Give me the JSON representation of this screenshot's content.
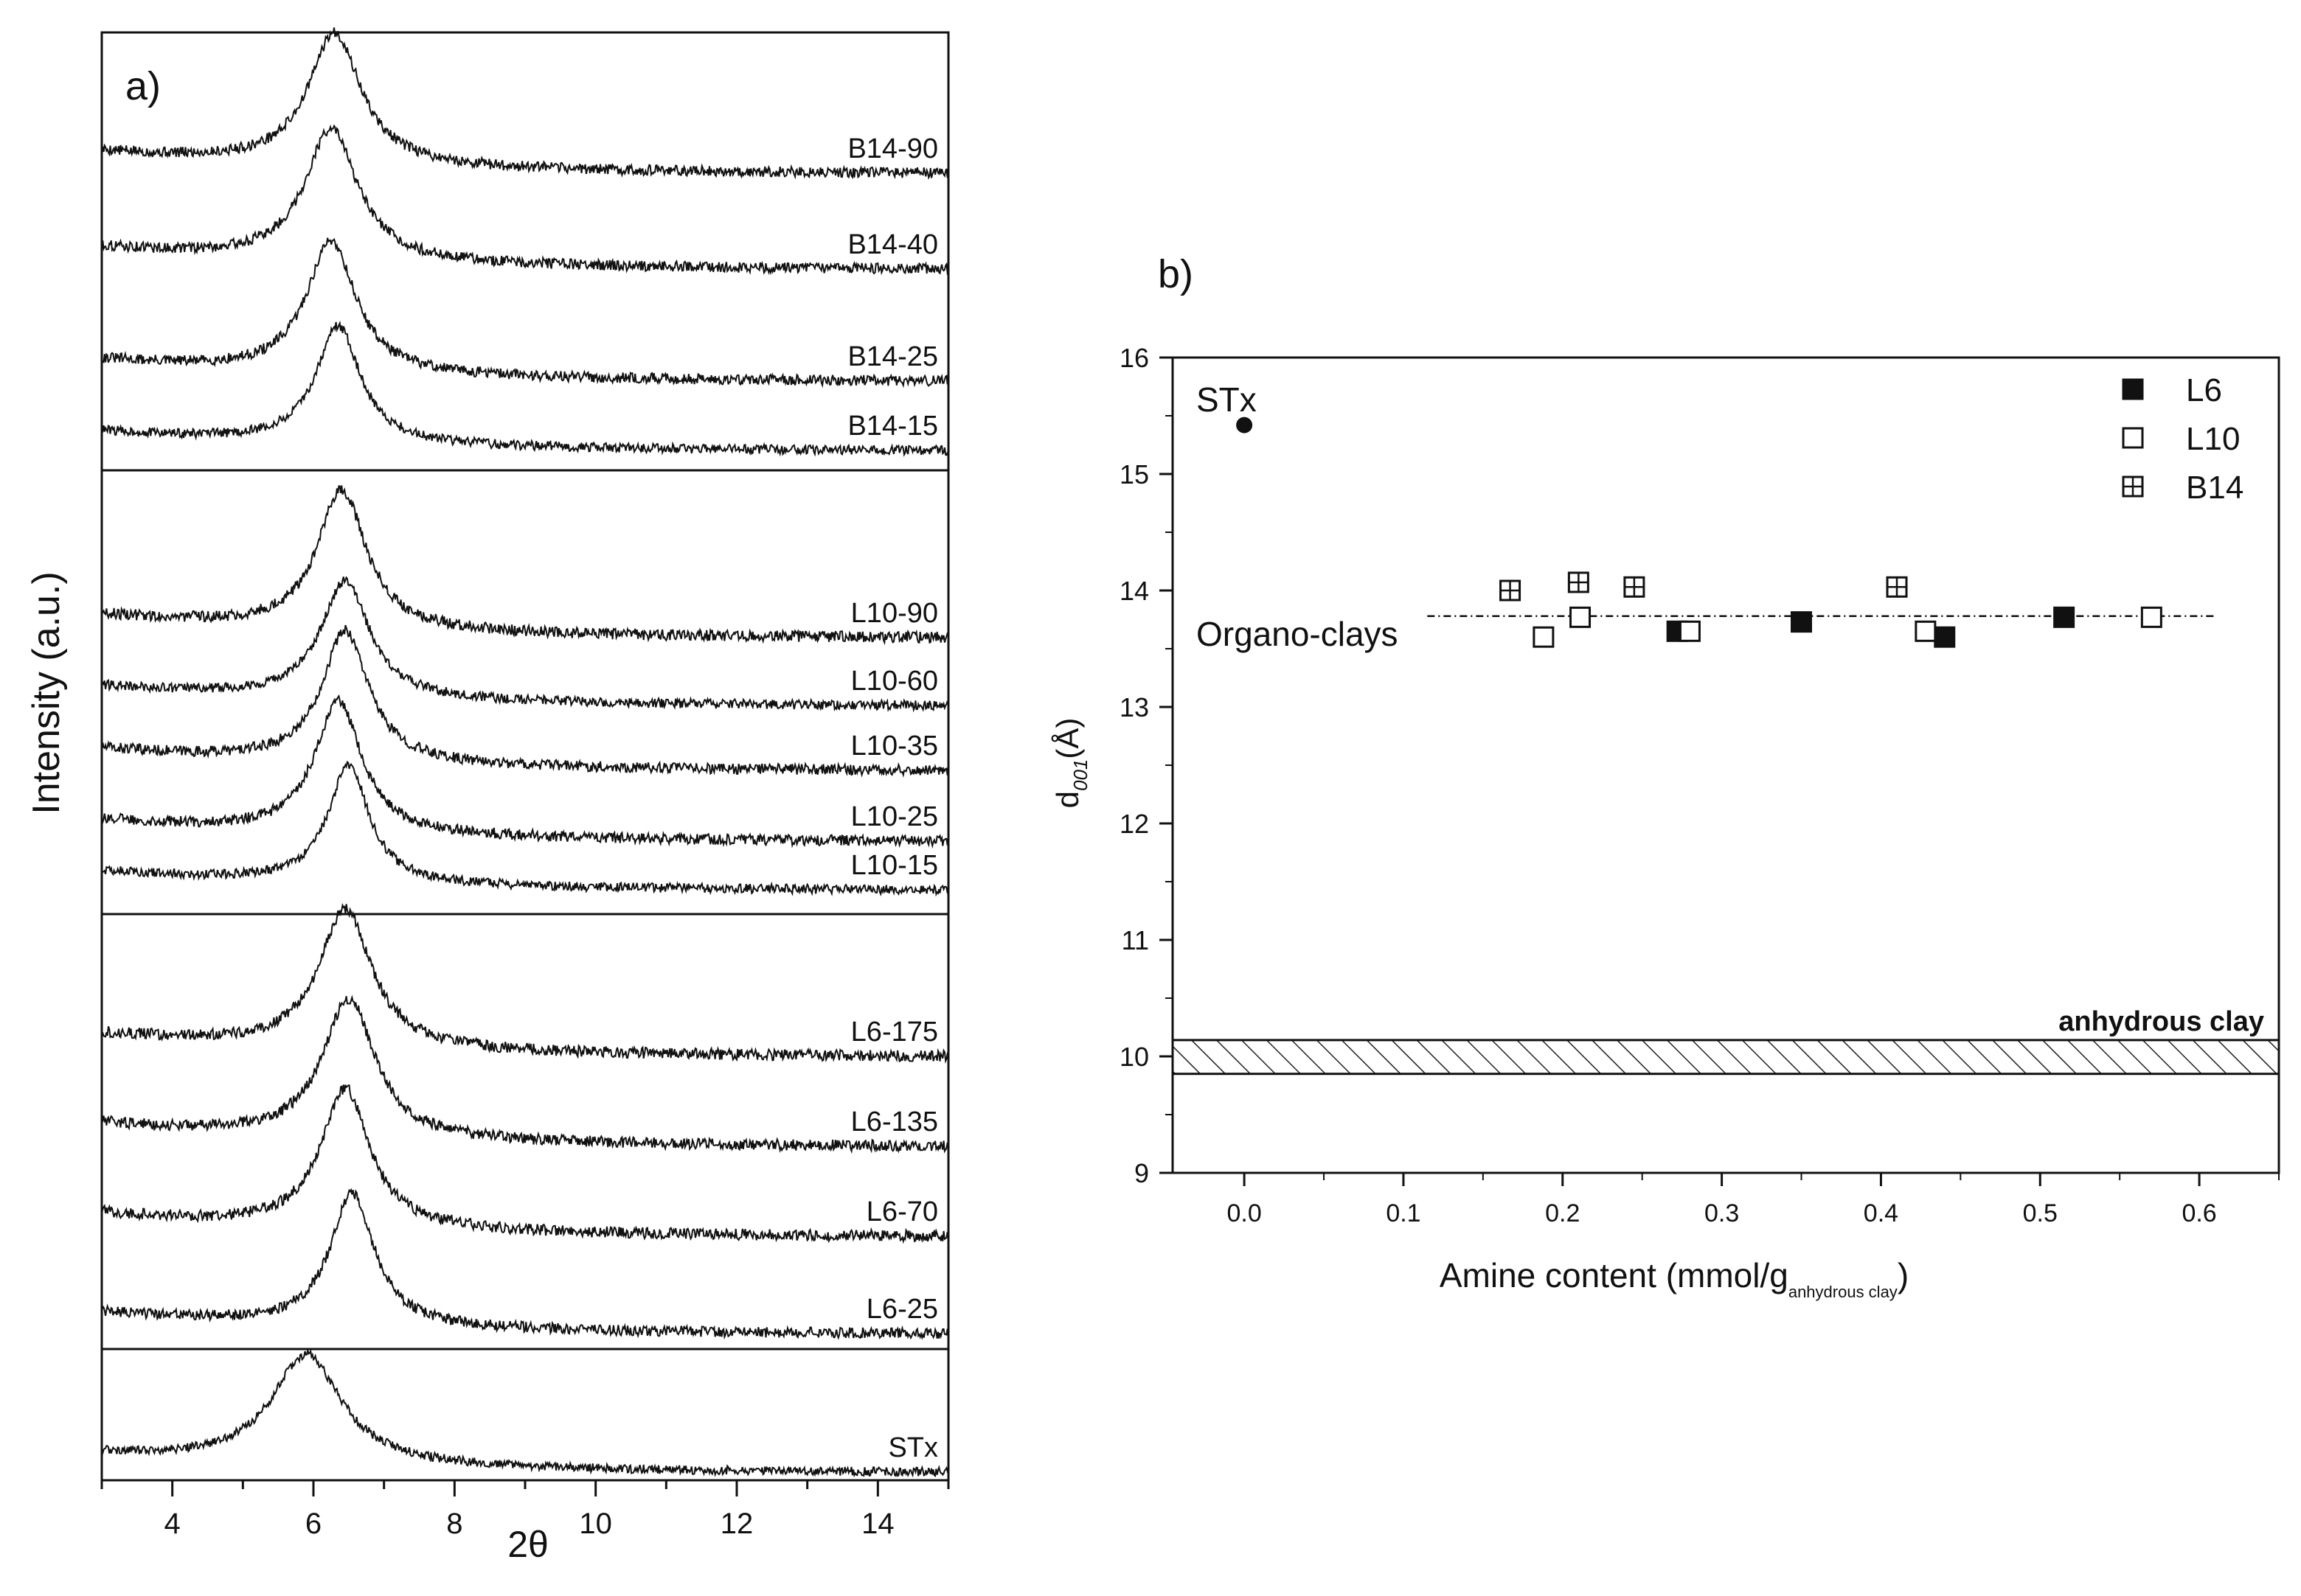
{
  "chart_data": [
    {
      "panel_label": "a)",
      "type": "line",
      "title": "",
      "xlabel": "2θ",
      "ylabel": "Intensity (a.u.)",
      "xlim": [
        3,
        15
      ],
      "xticks": [
        "4",
        "6",
        "8",
        "10",
        "12",
        "14"
      ],
      "yticks": [],
      "groups": [
        {
          "name": "B14",
          "series": [
            {
              "name": "B14-90",
              "peak": 6.3,
              "width": 0.45,
              "height": 1.0
            },
            {
              "name": "B14-40",
              "peak": 6.25,
              "width": 0.45,
              "height": 1.0
            },
            {
              "name": "B14-25",
              "peak": 6.25,
              "width": 0.42,
              "height": 1.0
            },
            {
              "name": "B14-15",
              "peak": 6.35,
              "width": 0.38,
              "height": 1.0
            }
          ]
        },
        {
          "name": "L10",
          "series": [
            {
              "name": "L10-90",
              "peak": 6.4,
              "width": 0.42,
              "height": 1.0
            },
            {
              "name": "L10-60",
              "peak": 6.45,
              "width": 0.42,
              "height": 1.0
            },
            {
              "name": "L10-35",
              "peak": 6.45,
              "width": 0.4,
              "height": 1.0
            },
            {
              "name": "L10-25",
              "peak": 6.35,
              "width": 0.4,
              "height": 1.0
            },
            {
              "name": "L10-15",
              "peak": 6.5,
              "width": 0.35,
              "height": 1.0
            }
          ]
        },
        {
          "name": "L6",
          "series": [
            {
              "name": "L6-175",
              "peak": 6.45,
              "width": 0.45,
              "height": 1.0
            },
            {
              "name": "L6-135",
              "peak": 6.5,
              "width": 0.45,
              "height": 1.0
            },
            {
              "name": "L6-70",
              "peak": 6.45,
              "width": 0.42,
              "height": 1.0
            },
            {
              "name": "L6-25",
              "peak": 6.55,
              "width": 0.38,
              "height": 1.0
            }
          ]
        },
        {
          "name": "STx",
          "series": [
            {
              "name": "STx",
              "peak": 5.9,
              "width": 0.6,
              "height": 1.0
            }
          ]
        }
      ]
    },
    {
      "panel_label": "b)",
      "type": "scatter",
      "title": "",
      "xlabel_main": "Amine content (mmol/g",
      "xlabel_sub": "anhydrous clay",
      "xlabel_end": ")",
      "ylabel_main": "d",
      "ylabel_sub": "001",
      "ylabel_end": "(Å)",
      "xlim": [
        -0.045,
        0.65
      ],
      "ylim": [
        9,
        16
      ],
      "xticks": [
        0.0,
        0.1,
        0.2,
        0.3,
        0.4,
        0.5,
        0.6
      ],
      "xtick_labels": [
        "0.0",
        "0.1",
        "0.2",
        "0.3",
        "0.4",
        "0.5",
        "0.6"
      ],
      "yticks": [
        9,
        10,
        11,
        12,
        13,
        14,
        15,
        16
      ],
      "ytick_labels": [
        "9",
        "10",
        "11",
        "12",
        "13",
        "14",
        "15",
        "16"
      ],
      "legend_position": "top-right",
      "series": [
        {
          "name": "L6",
          "marker": "filled-square",
          "x": [
            0.272,
            0.35,
            0.44,
            0.515
          ],
          "y": [
            13.65,
            13.73,
            13.6,
            13.77
          ]
        },
        {
          "name": "L10",
          "marker": "open-square",
          "x": [
            0.188,
            0.211,
            0.28,
            0.428,
            0.57
          ],
          "y": [
            13.6,
            13.77,
            13.65,
            13.65,
            13.77
          ]
        },
        {
          "name": "B14",
          "marker": "crossed-square",
          "x": [
            0.167,
            0.21,
            0.245,
            0.41
          ],
          "y": [
            14.0,
            14.07,
            14.03,
            14.03
          ]
        }
      ],
      "reference_points": [
        {
          "name": "STx",
          "x": 0.0,
          "y": 15.42,
          "label": "STx"
        }
      ],
      "reference_lines": [
        {
          "label": "Organo-clays",
          "y": 13.78,
          "x_range": [
            0.115,
            0.61
          ],
          "style": "dash-dot"
        }
      ],
      "bands": [
        {
          "label": "anhydrous clay",
          "y_range": [
            9.85,
            10.14
          ],
          "pattern": "hatched"
        }
      ]
    }
  ]
}
